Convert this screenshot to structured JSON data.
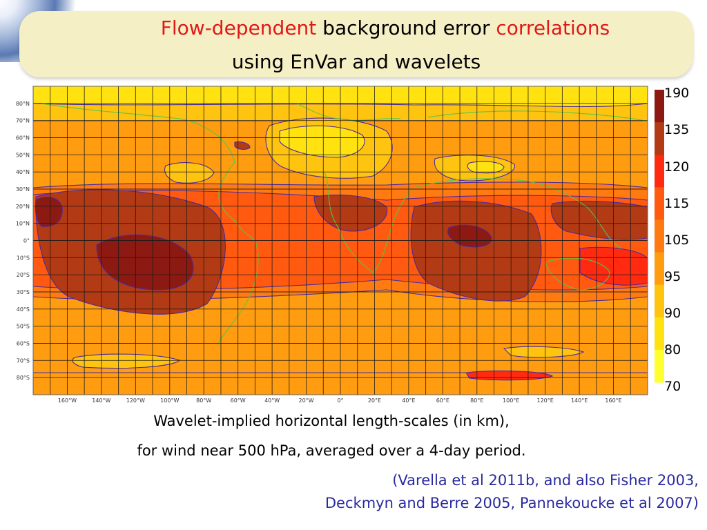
{
  "title": {
    "line1_part1": "Flow-dependent",
    "line1_part2": " background error ",
    "line1_part3": "correlations",
    "line2": "using EnVar and wavelets"
  },
  "caption": {
    "line1": "Wavelet-implied horizontal length-scales (in km),",
    "line2": "for wind near 500 hPa, averaged over a 4-day period."
  },
  "reference": {
    "line1": "(Varella et al 2011b, and also Fisher 2003,",
    "line2": "Deckmyn and Berre 2005, Pannekoucke et al 2007)"
  },
  "colors": {
    "title_accent": "#e01818",
    "reference_text": "#2a2aa0",
    "banner": "#f5efc6",
    "contour_line": "#4a2aa0",
    "coastline": "#55c84a"
  },
  "chart_data": {
    "type": "heatmap",
    "x_ticks": [
      "160°W",
      "140°W",
      "120°W",
      "100°W",
      "80°W",
      "60°W",
      "40°W",
      "20°W",
      "0°",
      "20°E",
      "40°E",
      "60°E",
      "80°E",
      "100°E",
      "120°E",
      "140°E",
      "160°E"
    ],
    "y_ticks": [
      "80°N",
      "70°N",
      "60°N",
      "50°N",
      "40°N",
      "30°N",
      "20°N",
      "10°N",
      "0°",
      "10°S",
      "20°S",
      "30°S",
      "40°S",
      "50°S",
      "60°S",
      "70°S",
      "80°S"
    ],
    "xlim": [
      -180,
      180
    ],
    "ylim": [
      -90,
      90
    ],
    "grid": true,
    "colorbar": {
      "labels": [
        "190",
        "135",
        "120",
        "115",
        "105",
        "95",
        "90",
        "80",
        "70"
      ],
      "colors": [
        "#8c1a12",
        "#b23a14",
        "#ff2a10",
        "#ff5a10",
        "#ff7a10",
        "#ff9c10",
        "#ffc410",
        "#ffe210",
        "#ffff30"
      ]
    }
  }
}
